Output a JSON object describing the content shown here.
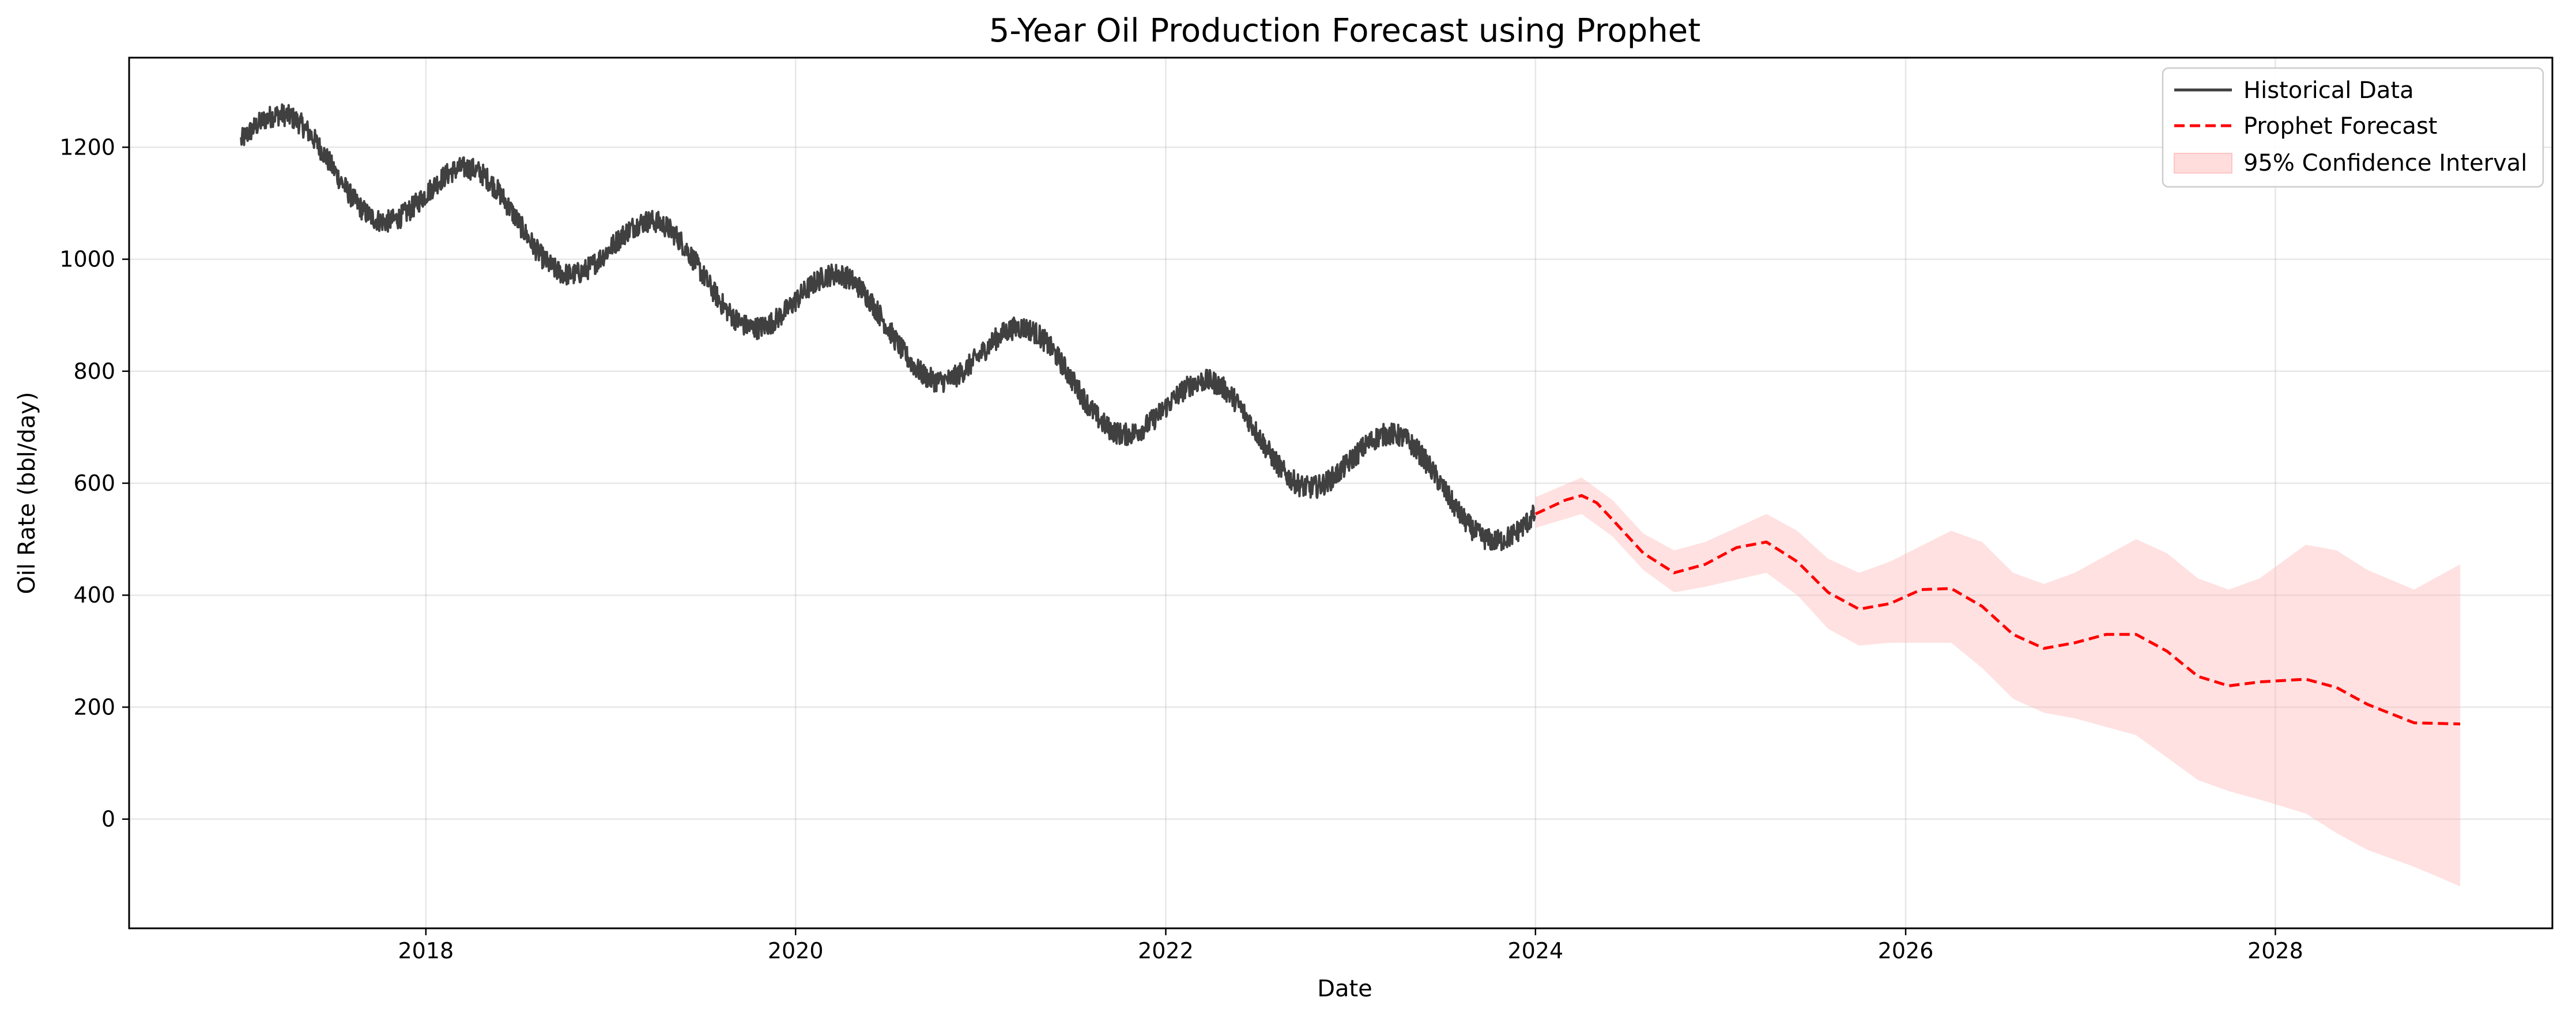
{
  "chart_data": {
    "type": "line",
    "title": "5-Year Oil Production Forecast using Prophet",
    "xlabel": "Date",
    "ylabel": "Oil Rate (bbl/day)",
    "xlim": [
      "2016-05-25",
      "2029-07-01"
    ],
    "ylim": [
      -195,
      1360
    ],
    "x_ticks": [
      "2018",
      "2020",
      "2022",
      "2024",
      "2026",
      "2028"
    ],
    "y_ticks": [
      0,
      200,
      400,
      600,
      800,
      1000,
      1200
    ],
    "grid": true,
    "legend_position": "upper right",
    "series": [
      {
        "name": "Historical Data",
        "style": "solid",
        "color": "#404040",
        "start": "2017-01-01",
        "end": "2023-12-31",
        "trend_start": 1210,
        "trend_end": 545,
        "seasonal_amplitude": 70,
        "seasonal_peak": "04-01",
        "noise_amplitude": 20
      },
      {
        "name": "Prophet Forecast",
        "style": "dashed",
        "color": "#ff0000",
        "points": [
          [
            "2024-01-01",
            545
          ],
          [
            "2024-03-01",
            570
          ],
          [
            "2024-04-01",
            578
          ],
          [
            "2024-05-01",
            565
          ],
          [
            "2024-06-01",
            535
          ],
          [
            "2024-08-01",
            475
          ],
          [
            "2024-10-01",
            440
          ],
          [
            "2024-12-01",
            455
          ],
          [
            "2025-02-01",
            485
          ],
          [
            "2025-04-01",
            495
          ],
          [
            "2025-06-01",
            460
          ],
          [
            "2025-08-01",
            405
          ],
          [
            "2025-10-01",
            375
          ],
          [
            "2025-12-01",
            385
          ],
          [
            "2026-02-01",
            410
          ],
          [
            "2026-04-01",
            412
          ],
          [
            "2026-06-01",
            380
          ],
          [
            "2026-08-01",
            330
          ],
          [
            "2026-10-01",
            305
          ],
          [
            "2026-12-01",
            315
          ],
          [
            "2027-02-01",
            330
          ],
          [
            "2027-04-01",
            330
          ],
          [
            "2027-06-01",
            300
          ],
          [
            "2027-08-01",
            255
          ],
          [
            "2027-10-01",
            238
          ],
          [
            "2027-12-01",
            245
          ],
          [
            "2028-03-01",
            250
          ],
          [
            "2028-05-01",
            235
          ],
          [
            "2028-07-01",
            205
          ],
          [
            "2028-10-01",
            172
          ],
          [
            "2028-12-31",
            170
          ]
        ]
      },
      {
        "name": "95% Confidence Interval",
        "style": "fill",
        "color": "#ffb3b3",
        "upper": [
          [
            "2024-01-01",
            575
          ],
          [
            "2024-04-01",
            610
          ],
          [
            "2024-06-01",
            570
          ],
          [
            "2024-08-01",
            510
          ],
          [
            "2024-10-01",
            480
          ],
          [
            "2024-12-01",
            495
          ],
          [
            "2025-04-01",
            545
          ],
          [
            "2025-06-01",
            515
          ],
          [
            "2025-08-01",
            465
          ],
          [
            "2025-10-01",
            440
          ],
          [
            "2025-12-01",
            460
          ],
          [
            "2026-04-01",
            515
          ],
          [
            "2026-06-01",
            495
          ],
          [
            "2026-08-01",
            440
          ],
          [
            "2026-10-01",
            420
          ],
          [
            "2026-12-01",
            440
          ],
          [
            "2027-04-01",
            500
          ],
          [
            "2027-06-01",
            475
          ],
          [
            "2027-08-01",
            430
          ],
          [
            "2027-10-01",
            410
          ],
          [
            "2027-12-01",
            430
          ],
          [
            "2028-03-01",
            490
          ],
          [
            "2028-05-01",
            480
          ],
          [
            "2028-07-01",
            445
          ],
          [
            "2028-10-01",
            410
          ],
          [
            "2028-12-31",
            455
          ]
        ],
        "lower": [
          [
            "2024-01-01",
            520
          ],
          [
            "2024-04-01",
            545
          ],
          [
            "2024-06-01",
            505
          ],
          [
            "2024-08-01",
            445
          ],
          [
            "2024-10-01",
            405
          ],
          [
            "2024-12-01",
            415
          ],
          [
            "2025-04-01",
            440
          ],
          [
            "2025-06-01",
            400
          ],
          [
            "2025-08-01",
            340
          ],
          [
            "2025-10-01",
            310
          ],
          [
            "2025-12-01",
            315
          ],
          [
            "2026-04-01",
            315
          ],
          [
            "2026-06-01",
            270
          ],
          [
            "2026-08-01",
            215
          ],
          [
            "2026-10-01",
            190
          ],
          [
            "2026-12-01",
            180
          ],
          [
            "2027-04-01",
            150
          ],
          [
            "2027-06-01",
            110
          ],
          [
            "2027-08-01",
            70
          ],
          [
            "2027-10-01",
            50
          ],
          [
            "2027-12-01",
            35
          ],
          [
            "2028-03-01",
            10
          ],
          [
            "2028-05-01",
            -25
          ],
          [
            "2028-07-01",
            -55
          ],
          [
            "2028-10-01",
            -85
          ],
          [
            "2028-12-31",
            -120
          ]
        ]
      }
    ]
  }
}
